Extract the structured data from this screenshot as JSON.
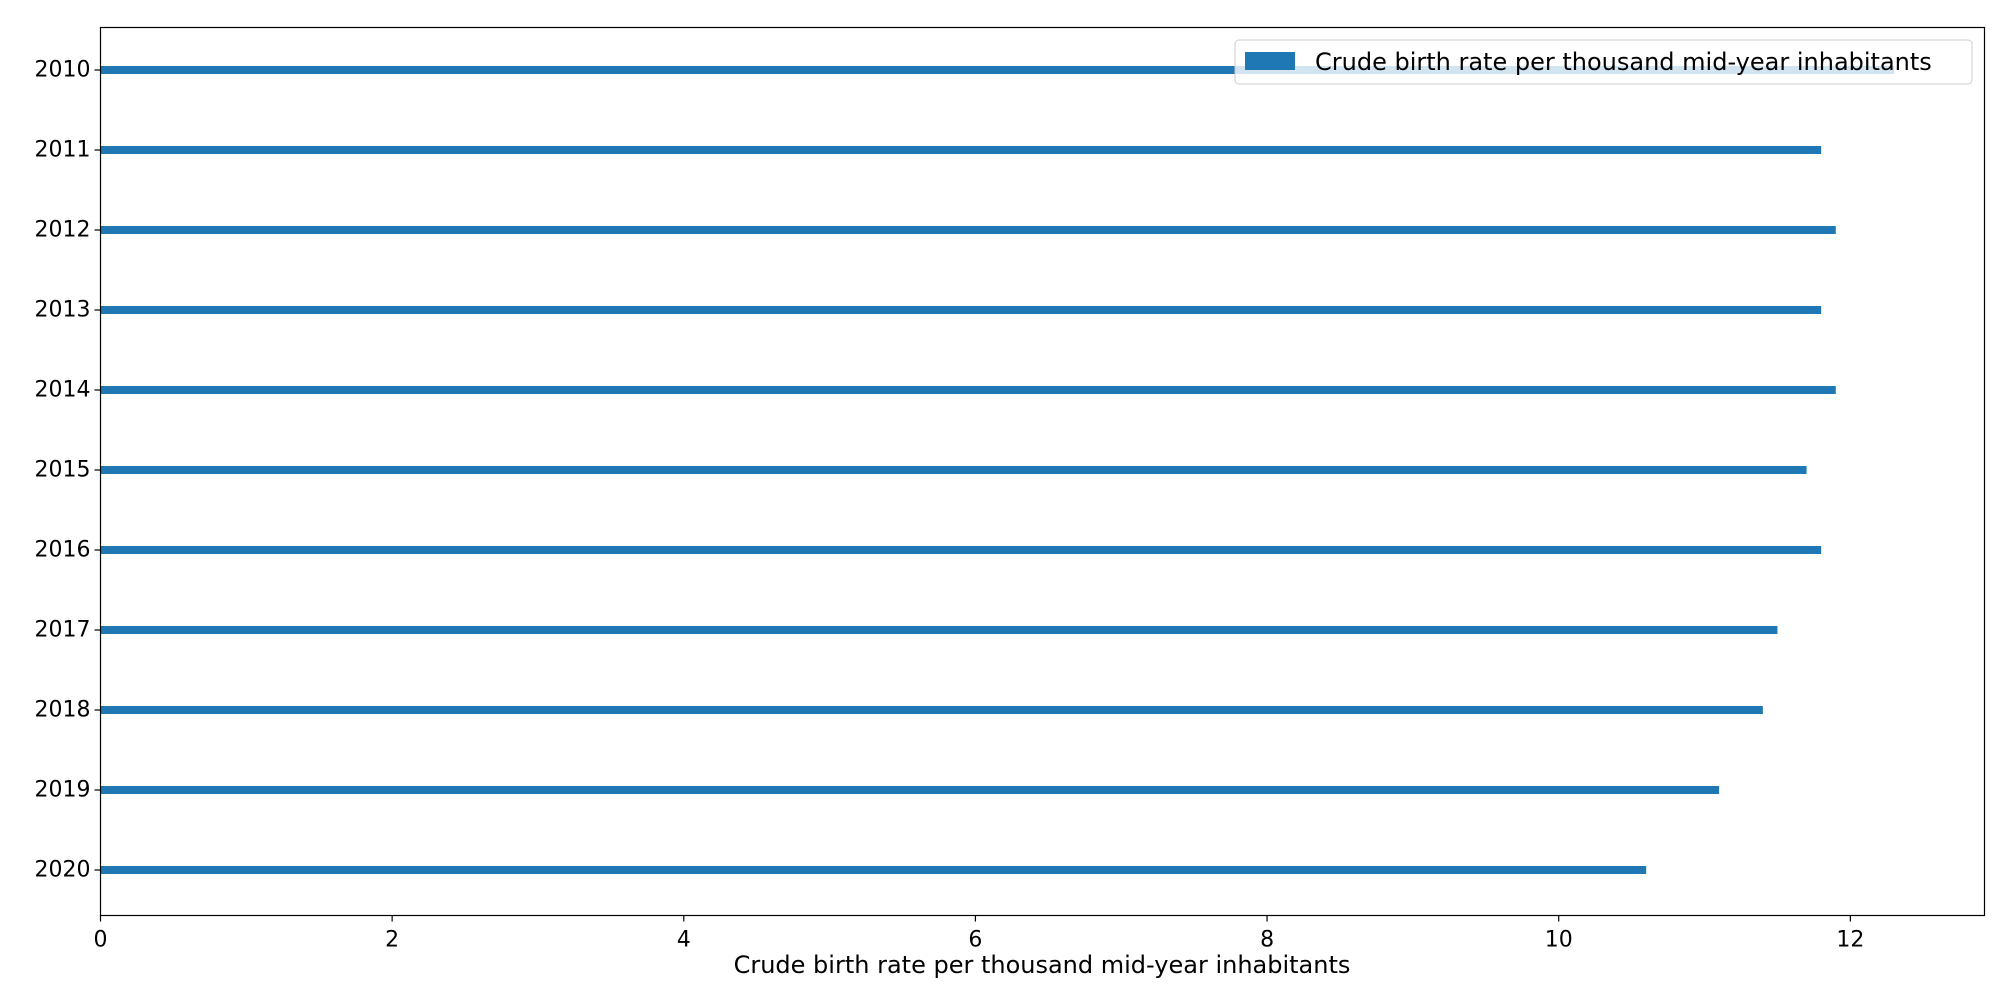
{
  "chart_data": {
    "type": "bar",
    "orientation": "horizontal",
    "categories": [
      "2010",
      "2011",
      "2012",
      "2013",
      "2014",
      "2015",
      "2016",
      "2017",
      "2018",
      "2019",
      "2020"
    ],
    "series": [
      {
        "name": "Crude birth rate per thousand mid-year inhabitants",
        "values": [
          12.3,
          11.8,
          11.9,
          11.8,
          11.9,
          11.7,
          11.8,
          11.5,
          11.4,
          11.1,
          10.6
        ],
        "color": "#1f77b4"
      }
    ],
    "xlabel": "Crude birth rate per thousand mid-year inhabitants",
    "ylabel": "",
    "title": "",
    "xlim": [
      0,
      12.92
    ],
    "xticks": [
      0,
      2,
      4,
      6,
      8,
      10,
      12
    ],
    "y_order": "top-to-bottom",
    "grid": false,
    "legend_position": "top-right"
  }
}
